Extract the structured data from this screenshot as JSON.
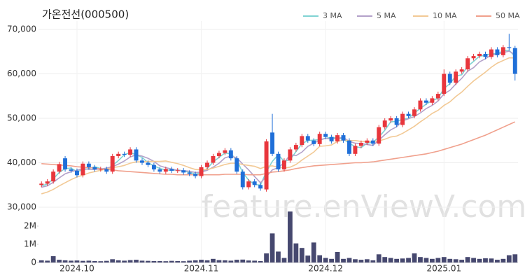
{
  "chart_data": {
    "type": "candlestick",
    "title": "가온전선(000500)",
    "watermark": "feature.enViewV.com",
    "categories": [
      null,
      null,
      null,
      null,
      null,
      null,
      "2024.10",
      null,
      null,
      null,
      null,
      null,
      null,
      null,
      null,
      null,
      null,
      null,
      null,
      null,
      null,
      null,
      null,
      null,
      null,
      null,
      null,
      "2024.11",
      null,
      null,
      null,
      null,
      null,
      null,
      null,
      null,
      null,
      null,
      null,
      null,
      null,
      null,
      null,
      null,
      null,
      null,
      null,
      null,
      "2024.12",
      null,
      null,
      null,
      null,
      null,
      null,
      null,
      null,
      null,
      null,
      null,
      null,
      null,
      null,
      null,
      null,
      null,
      null,
      null,
      "2025.01",
      null,
      null,
      null,
      null,
      null,
      null,
      null,
      null,
      null,
      null,
      null,
      null
    ],
    "open": [
      35000,
      35300,
      35800,
      38000,
      41000,
      38500,
      38200,
      37200,
      39800,
      39000,
      38500,
      38600,
      38000,
      41500,
      42000,
      41800,
      43000,
      40500,
      40000,
      39500,
      38500,
      38000,
      38600,
      38200,
      38300,
      37800,
      37500,
      37000,
      39000,
      40000,
      41500,
      42200,
      42800,
      41000,
      38000,
      34500,
      35800,
      35000,
      34000,
      46800,
      42000,
      38500,
      40500,
      43000,
      44000,
      46000,
      45000,
      44200,
      46500,
      45800,
      44800,
      46200,
      45000,
      42000,
      43800,
      44500,
      45000,
      44300,
      48000,
      49500,
      50000,
      48500,
      51000,
      50500,
      52000,
      54000,
      53500,
      54500,
      55500,
      60000,
      58000,
      60500,
      61000,
      63500,
      64000,
      64500,
      63800,
      65500,
      64200,
      66000,
      65800
    ],
    "high": [
      35800,
      36300,
      38500,
      40200,
      41500,
      39000,
      38700,
      40300,
      40300,
      39500,
      39100,
      39100,
      42000,
      42500,
      42500,
      43500,
      43500,
      41000,
      40500,
      40000,
      39000,
      39100,
      39100,
      38800,
      38800,
      38300,
      38000,
      39500,
      40500,
      42000,
      42700,
      43300,
      43300,
      41500,
      38500,
      36300,
      36300,
      35500,
      45300,
      51000,
      42500,
      41000,
      43500,
      44500,
      46500,
      46500,
      45500,
      47000,
      47000,
      46300,
      46700,
      46700,
      45500,
      44300,
      45000,
      45500,
      45500,
      48500,
      50000,
      50500,
      50500,
      51500,
      51500,
      52500,
      54500,
      54500,
      55000,
      56000,
      61000,
      60500,
      61000,
      61500,
      64000,
      64500,
      65000,
      65000,
      66000,
      66000,
      66500,
      69000,
      66300
    ],
    "low": [
      34500,
      34800,
      35300,
      37500,
      38000,
      37700,
      36700,
      36700,
      38500,
      38000,
      38000,
      37500,
      37500,
      41000,
      41300,
      41300,
      40000,
      39500,
      39000,
      38000,
      37500,
      37500,
      37700,
      37700,
      37300,
      37000,
      36500,
      36500,
      38500,
      39500,
      41000,
      41700,
      40500,
      37500,
      34000,
      34000,
      34500,
      33700,
      33500,
      41500,
      38000,
      38000,
      40000,
      42500,
      43500,
      44500,
      43700,
      43700,
      45300,
      44300,
      44300,
      44500,
      41500,
      41500,
      43300,
      44000,
      43800,
      43800,
      47500,
      49000,
      48000,
      48000,
      50000,
      50000,
      51500,
      53000,
      53000,
      54000,
      55000,
      57500,
      57500,
      60000,
      60500,
      63000,
      63500,
      63300,
      63300,
      63700,
      63700,
      65300,
      58500
    ],
    "close": [
      35300,
      35800,
      38000,
      39700,
      38500,
      38200,
      37200,
      39800,
      39000,
      38500,
      38600,
      38000,
      41500,
      42000,
      41800,
      43000,
      40500,
      40000,
      39500,
      38500,
      38000,
      38600,
      38200,
      38300,
      37800,
      37500,
      37000,
      39000,
      40000,
      41500,
      42200,
      42800,
      41000,
      38000,
      34500,
      35800,
      35000,
      34200,
      44800,
      42000,
      38500,
      40500,
      43000,
      44000,
      46000,
      45000,
      44200,
      46500,
      45800,
      44800,
      46200,
      45000,
      42000,
      43800,
      44500,
      45000,
      44300,
      48000,
      49500,
      50000,
      48500,
      51000,
      50500,
      52000,
      54000,
      53500,
      54500,
      55500,
      60000,
      58000,
      60500,
      61000,
      63500,
      64000,
      64500,
      63800,
      65500,
      64200,
      66000,
      65800,
      60000
    ],
    "up_color": "#e8363c",
    "down_color": "#1f6fd8",
    "ylim": [
      30000,
      70000
    ],
    "yticks": [
      {
        "value": 30000,
        "label": "30,000"
      },
      {
        "value": 40000,
        "label": "40,000"
      },
      {
        "value": 50000,
        "label": "50,000"
      },
      {
        "value": 60000,
        "label": "60,000"
      },
      {
        "value": 70000,
        "label": "70,000"
      }
    ],
    "grid": true,
    "series": [
      {
        "name": "3 MA",
        "color": "#7fd3d3",
        "values": [
          34800,
          35200,
          36400,
          37800,
          38700,
          38800,
          38000,
          38400,
          38700,
          39100,
          38700,
          38400,
          39400,
          40500,
          41800,
          42300,
          41800,
          41200,
          40000,
          39300,
          38700,
          38400,
          38300,
          38400,
          38100,
          37900,
          37400,
          37800,
          38700,
          40200,
          41200,
          42200,
          42000,
          40600,
          37800,
          36100,
          35100,
          35000,
          38000,
          40300,
          41800,
          40300,
          40700,
          42500,
          44300,
          45000,
          45100,
          45200,
          45500,
          45700,
          45600,
          45300,
          44400,
          43600,
          43400,
          44400,
          44600,
          45800,
          47300,
          49200,
          49300,
          49800,
          50000,
          51200,
          52200,
          53200,
          54000,
          54500,
          56700,
          57800,
          59500,
          59800,
          61700,
          62800,
          64000,
          64100,
          64600,
          64500,
          65200,
          65300,
          63900
        ]
      },
      {
        "name": "5 MA",
        "color": "#b3a1c9",
        "values": [
          34500,
          34800,
          35600,
          36600,
          37500,
          38000,
          38300,
          38700,
          38500,
          38500,
          38600,
          38800,
          39100,
          39700,
          40400,
          41300,
          41800,
          41500,
          41000,
          40300,
          39300,
          38900,
          38600,
          38300,
          38200,
          38100,
          37800,
          37900,
          38300,
          39000,
          39900,
          41100,
          41500,
          41100,
          39700,
          38400,
          36900,
          35500,
          36900,
          38400,
          38900,
          40000,
          41800,
          41600,
          42400,
          43700,
          44400,
          45100,
          45500,
          45300,
          45500,
          45700,
          44800,
          44400,
          44300,
          44100,
          43900,
          45100,
          46300,
          47400,
          48100,
          49400,
          49900,
          50400,
          51200,
          52200,
          52900,
          53900,
          55500,
          56300,
          57700,
          59000,
          60600,
          61400,
          62700,
          63400,
          64300,
          64400,
          64800,
          65100,
          64300
        ]
      },
      {
        "name": "10 MA",
        "color": "#f2c995",
        "values": [
          33000,
          33400,
          34000,
          34800,
          35500,
          36200,
          36800,
          37200,
          37700,
          38000,
          38300,
          38600,
          38900,
          39100,
          39400,
          39900,
          40200,
          40200,
          40300,
          40300,
          40300,
          40400,
          40100,
          39800,
          39400,
          38900,
          38500,
          38400,
          38500,
          38800,
          39200,
          39600,
          39900,
          39900,
          39600,
          39400,
          39200,
          38700,
          39200,
          39300,
          39000,
          38800,
          39000,
          39600,
          40600,
          41500,
          42400,
          43700,
          43800,
          44000,
          44800,
          45100,
          45000,
          45000,
          44800,
          44800,
          44800,
          44900,
          45300,
          45800,
          46000,
          46600,
          47400,
          48200,
          49200,
          50100,
          51100,
          51800,
          52900,
          53700,
          54900,
          55900,
          57200,
          58400,
          59400,
          60400,
          61500,
          62400,
          63000,
          63600,
          63600
        ]
      },
      {
        "name": "50 MA",
        "color": "#f0a08c",
        "values": [
          39800,
          39700,
          39600,
          39500,
          39400,
          39300,
          39100,
          39000,
          38900,
          38800,
          38600,
          38500,
          38400,
          38200,
          38100,
          38000,
          37900,
          37800,
          37700,
          37600,
          37500,
          37400,
          37400,
          37300,
          37300,
          37300,
          37300,
          37300,
          37300,
          37300,
          37300,
          37400,
          37400,
          37400,
          37400,
          37300,
          37300,
          37300,
          37600,
          37900,
          38000,
          38200,
          38400,
          38700,
          38900,
          39100,
          39300,
          39400,
          39500,
          39600,
          39700,
          39800,
          39900,
          40000,
          40000,
          40100,
          40200,
          40400,
          40600,
          40800,
          41000,
          41200,
          41400,
          41600,
          41800,
          42000,
          42300,
          42600,
          43000,
          43400,
          43800,
          44200,
          44700,
          45200,
          45700,
          46200,
          46800,
          47400,
          48000,
          48600,
          49200
        ]
      }
    ],
    "volume": {
      "color": "#46486f",
      "ylim": [
        0,
        3000000
      ],
      "yticks": [
        0,
        {
          "value": 1000000,
          "label": "1M"
        },
        {
          "value": 2000000,
          "label": "2M"
        }
      ],
      "values": [
        120000,
        100000,
        350000,
        150000,
        120000,
        100000,
        110000,
        90000,
        100000,
        80000,
        70000,
        90000,
        180000,
        120000,
        100000,
        130000,
        150000,
        100000,
        90000,
        80000,
        80000,
        70000,
        90000,
        80000,
        70000,
        100000,
        120000,
        150000,
        120000,
        200000,
        130000,
        120000,
        100000,
        150000,
        160000,
        110000,
        100000,
        80000,
        500000,
        1600000,
        600000,
        250000,
        2800000,
        1050000,
        800000,
        380000,
        1100000,
        400000,
        250000,
        200000,
        580000,
        200000,
        250000,
        180000,
        150000,
        180000,
        120000,
        450000,
        300000,
        250000,
        200000,
        220000,
        250000,
        500000,
        300000,
        250000,
        200000,
        250000,
        300000,
        200000,
        180000,
        150000,
        300000,
        250000,
        200000,
        230000,
        220000,
        150000,
        200000,
        400000,
        450000
      ]
    }
  }
}
